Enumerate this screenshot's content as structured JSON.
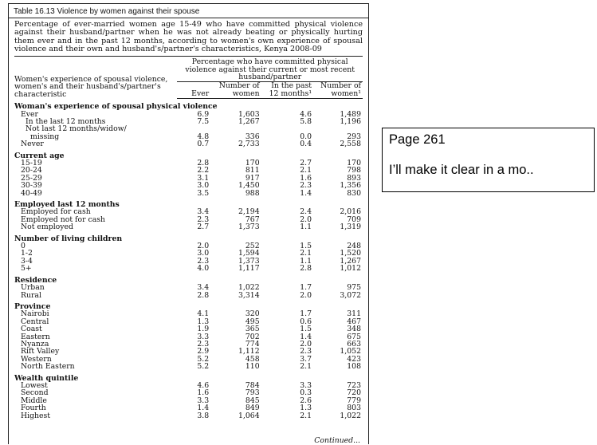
{
  "document": {
    "title": "Table 16.13  Violence by women against their spouse",
    "caption": "Percentage of ever-married women age 15-49 who have committed physical violence against their husband/partner when he was not already beating or physically hurting them ever and in the past 12 months, according to women's own experience of spousal violence and their own and husband's/partner's characteristics, Kenya 2008-09",
    "header": {
      "row_label": "Women's experience of spousal violence, women's and their husband's/partner's characteristic",
      "group_label": "Percentage who have committed physical violence against their current or most recent husband/partner",
      "col_ever": "Ever",
      "col_num_women_1": "Number of women",
      "col_past12": "In the past 12 months¹",
      "col_num_women_2": "Number of women¹"
    },
    "sections": [
      {
        "title": "Woman's experience of spousal physical violence",
        "rows": [
          {
            "label": "Ever",
            "indent": 1,
            "ever": "6.9",
            "n1": "1,603",
            "p12": "4.6",
            "n2": "1,489"
          },
          {
            "label": "In the last 12 months",
            "indent": 2,
            "ever": "7.5",
            "n1": "1,267",
            "p12": "5.8",
            "n2": "1,196"
          },
          {
            "label": "Not last 12 months/widow/",
            "indent": 2,
            "ever": "",
            "n1": "",
            "p12": "",
            "n2": ""
          },
          {
            "label": "missing",
            "indent": 3,
            "ever": "4.8",
            "n1": "336",
            "p12": "0.0",
            "n2": "293"
          },
          {
            "label": "Never",
            "indent": 1,
            "ever": "0.7",
            "n1": "2,733",
            "p12": "0.4",
            "n2": "2,558"
          }
        ]
      },
      {
        "title": "Current age",
        "rows": [
          {
            "label": "15-19",
            "indent": 1,
            "ever": "2.8",
            "n1": "170",
            "p12": "2.7",
            "n2": "170"
          },
          {
            "label": "20-24",
            "indent": 1,
            "ever": "2.2",
            "n1": "811",
            "p12": "2.1",
            "n2": "798"
          },
          {
            "label": "25-29",
            "indent": 1,
            "ever": "3.1",
            "n1": "917",
            "p12": "1.6",
            "n2": "893"
          },
          {
            "label": "30-39",
            "indent": 1,
            "ever": "3.0",
            "n1": "1,450",
            "p12": "2.3",
            "n2": "1,356"
          },
          {
            "label": "40-49",
            "indent": 1,
            "ever": "3.5",
            "n1": "988",
            "p12": "1.4",
            "n2": "830"
          }
        ]
      },
      {
        "title": "Employed last 12 months",
        "rows": [
          {
            "label": "Employed for cash",
            "indent": 1,
            "ever": "3.4",
            "n1": "2,194",
            "p12": "2.4",
            "n2": "2,016"
          },
          {
            "label": "Employed not for cash",
            "indent": 1,
            "ever": "2.3",
            "n1": "767",
            "p12": "2.0",
            "n2": "709"
          },
          {
            "label": "Not employed",
            "indent": 1,
            "ever": "2.7",
            "n1": "1,373",
            "p12": "1.1",
            "n2": "1,319"
          }
        ]
      },
      {
        "title": "Number of living children",
        "rows": [
          {
            "label": "0",
            "indent": 1,
            "ever": "2.0",
            "n1": "252",
            "p12": "1.5",
            "n2": "248"
          },
          {
            "label": "1-2",
            "indent": 1,
            "ever": "3.0",
            "n1": "1,594",
            "p12": "2.1",
            "n2": "1,520"
          },
          {
            "label": "3-4",
            "indent": 1,
            "ever": "2.3",
            "n1": "1,373",
            "p12": "1.1",
            "n2": "1,267"
          },
          {
            "label": "5+",
            "indent": 1,
            "ever": "4.0",
            "n1": "1,117",
            "p12": "2.8",
            "n2": "1,012"
          }
        ]
      },
      {
        "title": "Residence",
        "rows": [
          {
            "label": "Urban",
            "indent": 1,
            "ever": "3.4",
            "n1": "1,022",
            "p12": "1.7",
            "n2": "975"
          },
          {
            "label": "Rural",
            "indent": 1,
            "ever": "2.8",
            "n1": "3,314",
            "p12": "2.0",
            "n2": "3,072"
          }
        ]
      },
      {
        "title": "Province",
        "rows": [
          {
            "label": "Nairobi",
            "indent": 1,
            "ever": "4.1",
            "n1": "320",
            "p12": "1.7",
            "n2": "311"
          },
          {
            "label": "Central",
            "indent": 1,
            "ever": "1.3",
            "n1": "495",
            "p12": "0.6",
            "n2": "467"
          },
          {
            "label": "Coast",
            "indent": 1,
            "ever": "1.9",
            "n1": "365",
            "p12": "1.5",
            "n2": "348"
          },
          {
            "label": "Eastern",
            "indent": 1,
            "ever": "3.3",
            "n1": "702",
            "p12": "1.4",
            "n2": "675"
          },
          {
            "label": "Nyanza",
            "indent": 1,
            "ever": "2.3",
            "n1": "774",
            "p12": "2.0",
            "n2": "663"
          },
          {
            "label": "Rift Valley",
            "indent": 1,
            "ever": "2.9",
            "n1": "1,112",
            "p12": "2.3",
            "n2": "1,052"
          },
          {
            "label": "Western",
            "indent": 1,
            "ever": "5.2",
            "n1": "458",
            "p12": "3.7",
            "n2": "423"
          },
          {
            "label": "North Eastern",
            "indent": 1,
            "ever": "5.2",
            "n1": "110",
            "p12": "2.1",
            "n2": "108"
          }
        ]
      },
      {
        "title": "Wealth quintile",
        "rows": [
          {
            "label": "Lowest",
            "indent": 1,
            "ever": "4.6",
            "n1": "784",
            "p12": "3.3",
            "n2": "723"
          },
          {
            "label": "Second",
            "indent": 1,
            "ever": "1.6",
            "n1": "793",
            "p12": "0.3",
            "n2": "720"
          },
          {
            "label": "Middle",
            "indent": 1,
            "ever": "3.3",
            "n1": "845",
            "p12": "2.6",
            "n2": "779"
          },
          {
            "label": "Fourth",
            "indent": 1,
            "ever": "1.4",
            "n1": "849",
            "p12": "1.3",
            "n2": "803"
          },
          {
            "label": "Highest",
            "indent": 1,
            "ever": "3.8",
            "n1": "1,064",
            "p12": "2.1",
            "n2": "1,022"
          }
        ]
      }
    ],
    "continued": "Continued..."
  },
  "note_box": {
    "line1": "Page 261",
    "line2": "I’ll make it clear in a mo.."
  }
}
